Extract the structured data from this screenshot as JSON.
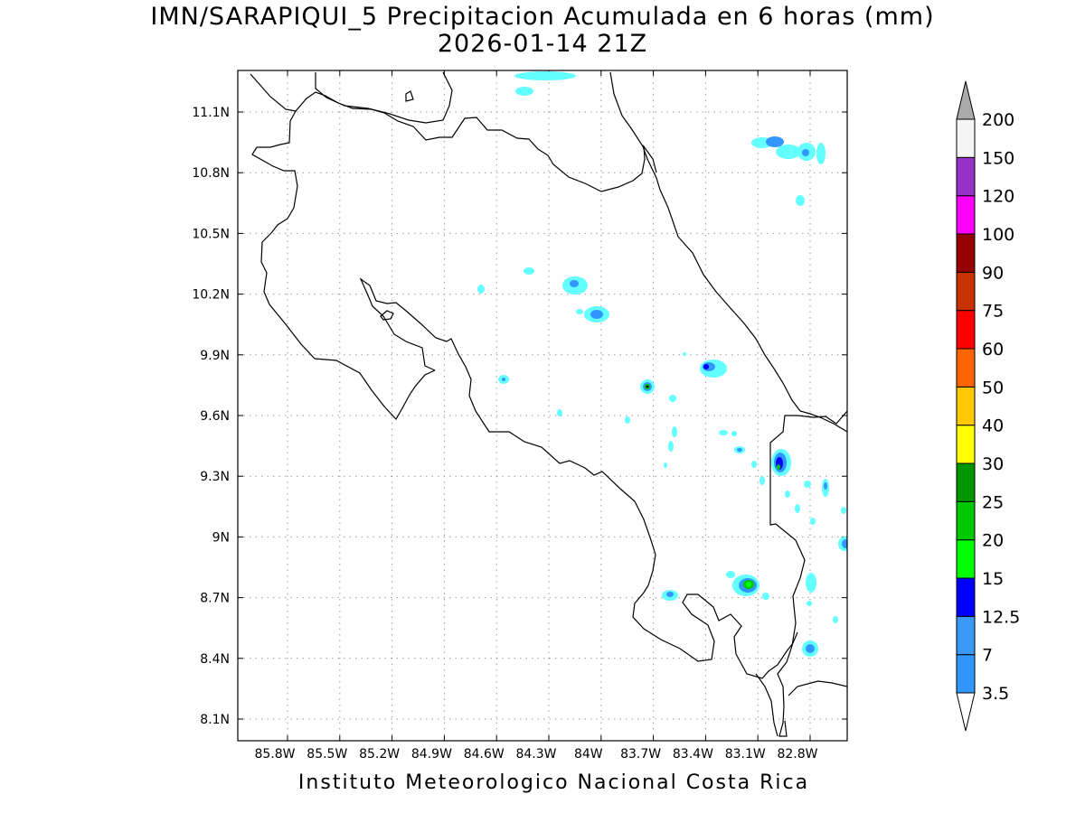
{
  "title_line1": "IMN/SARAPIQUI_5 Precipitacion Acumulada en 6 horas (mm)",
  "title_line2": "2026-01-14 21Z",
  "credit": "Instituto Meteorologico Nacional Costa Rica",
  "map": {
    "lon_range": [
      -86.0,
      -83.0
    ],
    "lat_range": [
      8.0,
      11.3
    ],
    "grid": true,
    "lon_ticks": [
      "85.8W",
      "85.5W",
      "85.2W",
      "84.9W",
      "84.6W",
      "84.3W",
      "84W",
      "83.7W",
      "83.4W",
      "83.1W",
      "82.8W"
    ],
    "lat_ticks": [
      "11.1N",
      "10.8N",
      "10.5N",
      "10.2N",
      "9.9N",
      "9.6N",
      "9.3N",
      "9N",
      "8.7N",
      "8.4N",
      "8.1N"
    ]
  },
  "colorbar": {
    "units": "mm",
    "levels": [
      "3.5",
      "7",
      "12.5",
      "15",
      "20",
      "25",
      "30",
      "40",
      "50",
      "60",
      "75",
      "90",
      "100",
      "120",
      "150",
      "200"
    ],
    "colors": [
      "#64ffff",
      "#3296ff",
      "#3b99f8",
      "#0000ff",
      "#00ff00",
      "#00c800",
      "#009600",
      "#ffff00",
      "#ffc800",
      "#ff6400",
      "#ff0000",
      "#c83200",
      "#960000",
      "#ff00ff",
      "#9632c8",
      "#f5f5f5",
      "#aaaaaa"
    ]
  },
  "precip_cells": [
    {
      "lon": -84.0,
      "lat": 10.25,
      "level": "7"
    },
    {
      "lon": -83.95,
      "lat": 10.1,
      "level": "7"
    },
    {
      "lon": -83.35,
      "lat": 9.84,
      "level": "12.5"
    },
    {
      "lon": -83.6,
      "lat": 9.75,
      "level": "20"
    },
    {
      "lon": -82.98,
      "lat": 9.35,
      "level": "20"
    },
    {
      "lon": -83.08,
      "lat": 8.77,
      "level": "20"
    },
    {
      "lon": -82.9,
      "lat": 10.92,
      "level": "7"
    },
    {
      "lon": -82.65,
      "lat": 8.44,
      "level": "7"
    },
    {
      "lon": -82.5,
      "lat": 8.97,
      "level": "7"
    }
  ]
}
